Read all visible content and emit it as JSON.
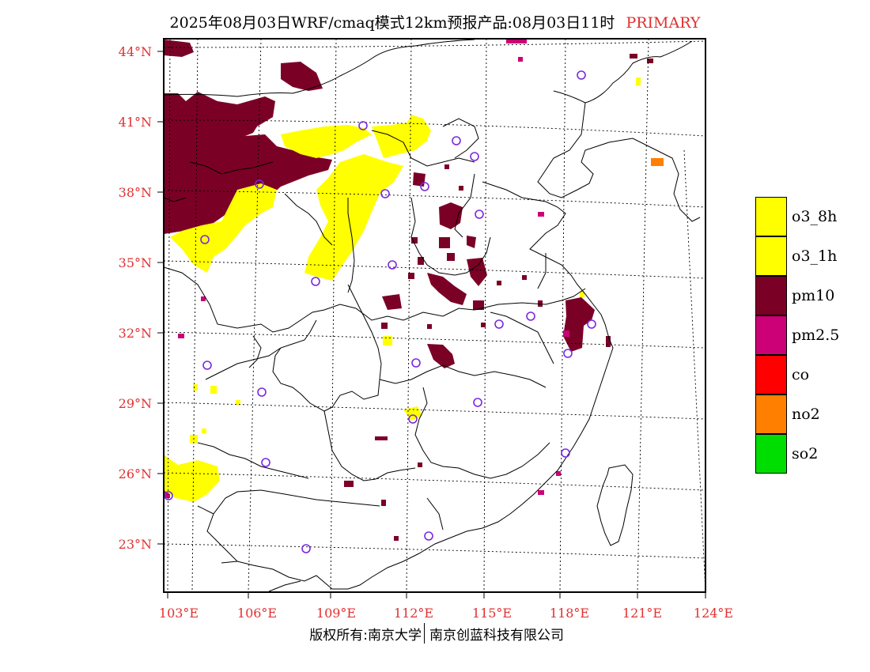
{
  "title": {
    "text": "2025年08月03日WRF/cmaq模式12km预报产品:08月03日11时",
    "tag": "PRIMARY",
    "tag_color": "#e03030"
  },
  "map": {
    "lat_labels": [
      "44°N",
      "41°N",
      "38°N",
      "35°N",
      "32°N",
      "29°N",
      "26°N",
      "23°N"
    ],
    "lon_labels": [
      "103°E",
      "106°E",
      "109°E",
      "112°E",
      "115°E",
      "118°E",
      "121°E",
      "124°E"
    ],
    "station_marker_color": "#7a28e0",
    "border_color": "#000000",
    "grid_color": "#000000"
  },
  "legend": {
    "items": [
      {
        "label": "o3_8h",
        "color": "#ffff00"
      },
      {
        "label": "o3_1h",
        "color": "#ffff00"
      },
      {
        "label": "pm10",
        "color": "#7b0026"
      },
      {
        "label": "pm2.5",
        "color": "#cc0077"
      },
      {
        "label": "co",
        "color": "#ff0000"
      },
      {
        "label": "no2",
        "color": "#ff8000"
      },
      {
        "label": "so2",
        "color": "#00dd00"
      }
    ]
  },
  "footer": {
    "left": "版权所有:南京大学",
    "right": "南京创蓝科技有限公司"
  }
}
